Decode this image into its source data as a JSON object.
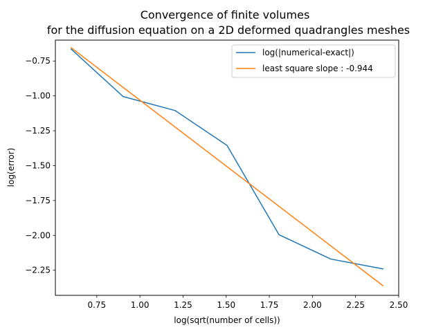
{
  "chart_data": {
    "type": "line",
    "title": "Convergence of finite volumes",
    "subtitle": "for the diffusion equation on a 2D deformed quadrangles meshes",
    "xlabel": "log(sqrt(number of cells))",
    "ylabel": "log(error)",
    "xlim": [
      0.51,
      2.5
    ],
    "ylim": [
      -2.43,
      -0.6
    ],
    "xticks": [
      0.75,
      1.0,
      1.25,
      1.5,
      1.75,
      2.0,
      2.25,
      2.5
    ],
    "xtick_labels": [
      "0.75",
      "1.00",
      "1.25",
      "1.50",
      "1.75",
      "2.00",
      "2.25",
      "2.50"
    ],
    "yticks": [
      -0.75,
      -1.0,
      -1.25,
      -1.5,
      -1.75,
      -2.0,
      -2.25
    ],
    "ytick_labels": [
      "−0.75",
      "−1.00",
      "−1.25",
      "−1.50",
      "−1.75",
      "−2.00",
      "−2.25"
    ],
    "grid": false,
    "legend_position": "top-right",
    "series": [
      {
        "name": "log(|numerical-exact|)",
        "color": "#1f77b4",
        "x": [
          0.602,
          0.903,
          1.204,
          1.505,
          1.806,
          2.107,
          2.408
        ],
        "y": [
          -0.665,
          -1.005,
          -1.105,
          -1.355,
          -1.995,
          -2.17,
          -2.24
        ]
      },
      {
        "name": "least square slope : -0.944",
        "color": "#ff7f0e",
        "x": [
          0.602,
          2.408
        ],
        "y": [
          -0.655,
          -2.36
        ]
      }
    ]
  }
}
